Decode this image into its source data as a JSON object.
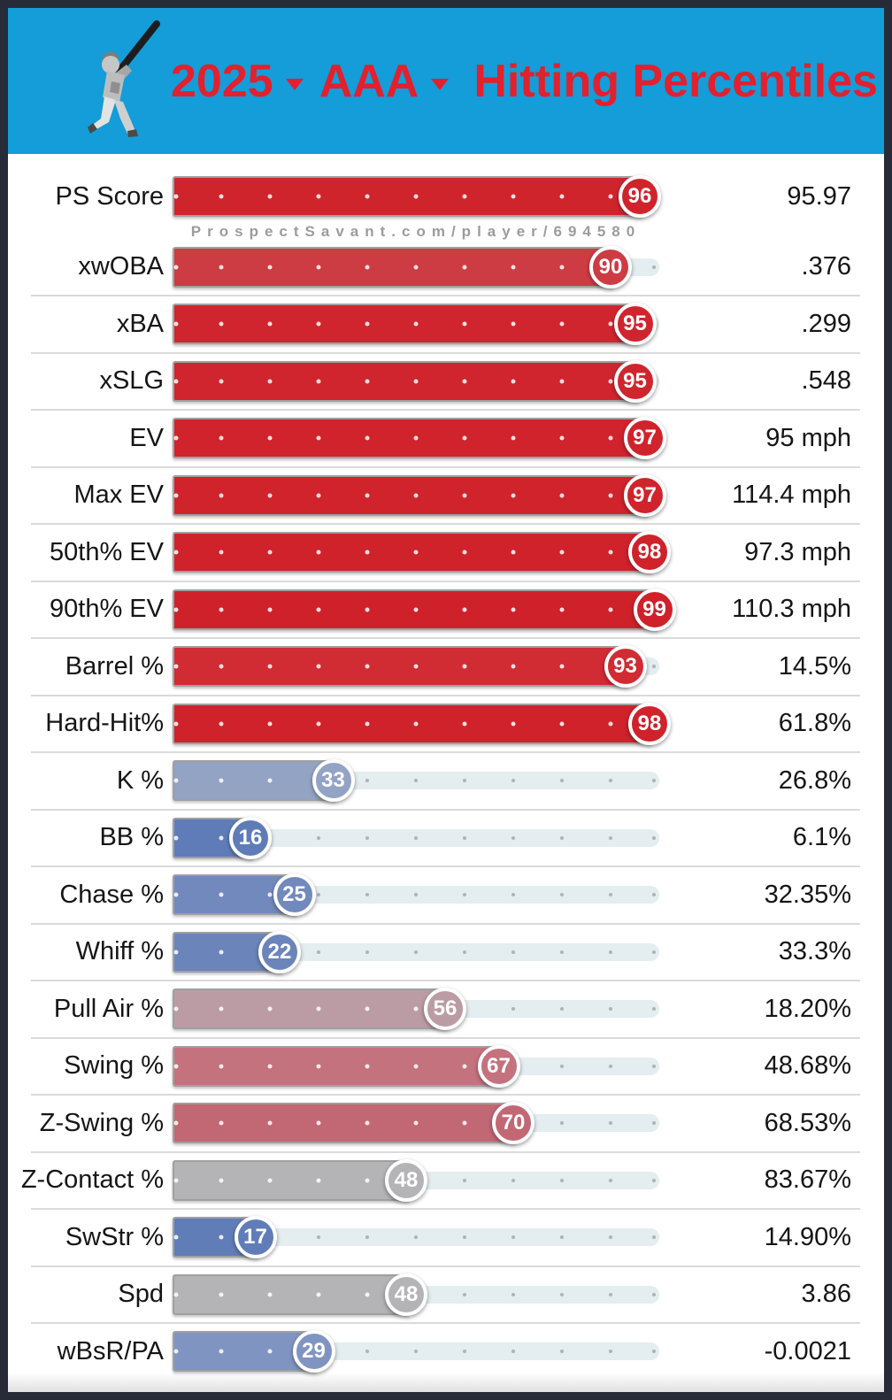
{
  "frame_color": "#262B37",
  "header": {
    "background": "#149DD8",
    "title_color": "#E2202E",
    "year": "2025",
    "level": "AAA",
    "title": "Hitting Percentiles",
    "icon": "batter-icon"
  },
  "watermark": "ProspectSavant.com/player/694580",
  "track_color": "#E4EDF0",
  "rows": [
    {
      "label": "PS Score",
      "percentile": 96,
      "value": "95.97",
      "color": "#D0242D"
    },
    {
      "label": "xwOBA",
      "percentile": 90,
      "value": ".376",
      "color": "#CD3B43"
    },
    {
      "label": "xBA",
      "percentile": 95,
      "value": ".299",
      "color": "#D0252E"
    },
    {
      "label": "xSLG",
      "percentile": 95,
      "value": ".548",
      "color": "#D0252E"
    },
    {
      "label": "EV",
      "percentile": 97,
      "value": "95 mph",
      "color": "#D0232C"
    },
    {
      "label": "Max EV",
      "percentile": 97,
      "value": "114.4 mph",
      "color": "#D0232C"
    },
    {
      "label": "50th% EV",
      "percentile": 98,
      "value": "97.3 mph",
      "color": "#CF222B"
    },
    {
      "label": "90th% EV",
      "percentile": 99,
      "value": "110.3 mph",
      "color": "#CF212A"
    },
    {
      "label": "Barrel %",
      "percentile": 93,
      "value": "14.5%",
      "color": "#D12B34"
    },
    {
      "label": "Hard-Hit%",
      "percentile": 98,
      "value": "61.8%",
      "color": "#CF222B"
    },
    {
      "label": "K %",
      "percentile": 33,
      "value": "26.8%",
      "color": "#93A3C4"
    },
    {
      "label": "BB %",
      "percentile": 16,
      "value": "6.1%",
      "color": "#5F7CB8"
    },
    {
      "label": "Chase %",
      "percentile": 25,
      "value": "32.35%",
      "color": "#7289BD"
    },
    {
      "label": "Whiff %",
      "percentile": 22,
      "value": "33.3%",
      "color": "#6B84BA"
    },
    {
      "label": "Pull Air %",
      "percentile": 56,
      "value": "18.20%",
      "color": "#BB9CA5"
    },
    {
      "label": "Swing %",
      "percentile": 67,
      "value": "48.68%",
      "color": "#C4727D"
    },
    {
      "label": "Z-Swing %",
      "percentile": 70,
      "value": "68.53%",
      "color": "#C26774"
    },
    {
      "label": "Z-Contact %",
      "percentile": 48,
      "value": "83.67%",
      "color": "#B4B4B7"
    },
    {
      "label": "SwStr %",
      "percentile": 17,
      "value": "14.90%",
      "color": "#607DB8"
    },
    {
      "label": "Spd",
      "percentile": 48,
      "value": "3.86",
      "color": "#B4B4B7"
    },
    {
      "label": "wBsR/PA",
      "percentile": 29,
      "value": "-0.0021",
      "color": "#8094C1"
    }
  ],
  "chart_data": {
    "type": "bar",
    "title": "2025 AAA Hitting Percentiles",
    "xlabel": "Percentile",
    "ylabel": "",
    "xlim": [
      0,
      100
    ],
    "grid": "decile dots at 10-100",
    "legend_position": "none",
    "categories": [
      "PS Score",
      "xwOBA",
      "xBA",
      "xSLG",
      "EV",
      "Max EV",
      "50th% EV",
      "90th% EV",
      "Barrel %",
      "Hard-Hit%",
      "K %",
      "BB %",
      "Chase %",
      "Whiff %",
      "Pull Air %",
      "Swing %",
      "Z-Swing %",
      "Z-Contact %",
      "SwStr %",
      "Spd",
      "wBsR/PA"
    ],
    "series": [
      {
        "name": "Percentile",
        "values": [
          96,
          90,
          95,
          95,
          97,
          97,
          98,
          99,
          93,
          98,
          33,
          16,
          25,
          22,
          56,
          67,
          70,
          48,
          17,
          48,
          29
        ]
      },
      {
        "name": "Stat Value",
        "values": [
          "95.97",
          ".376",
          ".299",
          ".548",
          "95 mph",
          "114.4 mph",
          "97.3 mph",
          "110.3 mph",
          "14.5%",
          "61.8%",
          "26.8%",
          "6.1%",
          "32.35%",
          "33.3%",
          "18.20%",
          "48.68%",
          "68.53%",
          "83.67%",
          "14.90%",
          "3.86",
          "-0.0021"
        ]
      }
    ],
    "annotations": [
      "ProspectSavant.com/player/694580"
    ]
  }
}
